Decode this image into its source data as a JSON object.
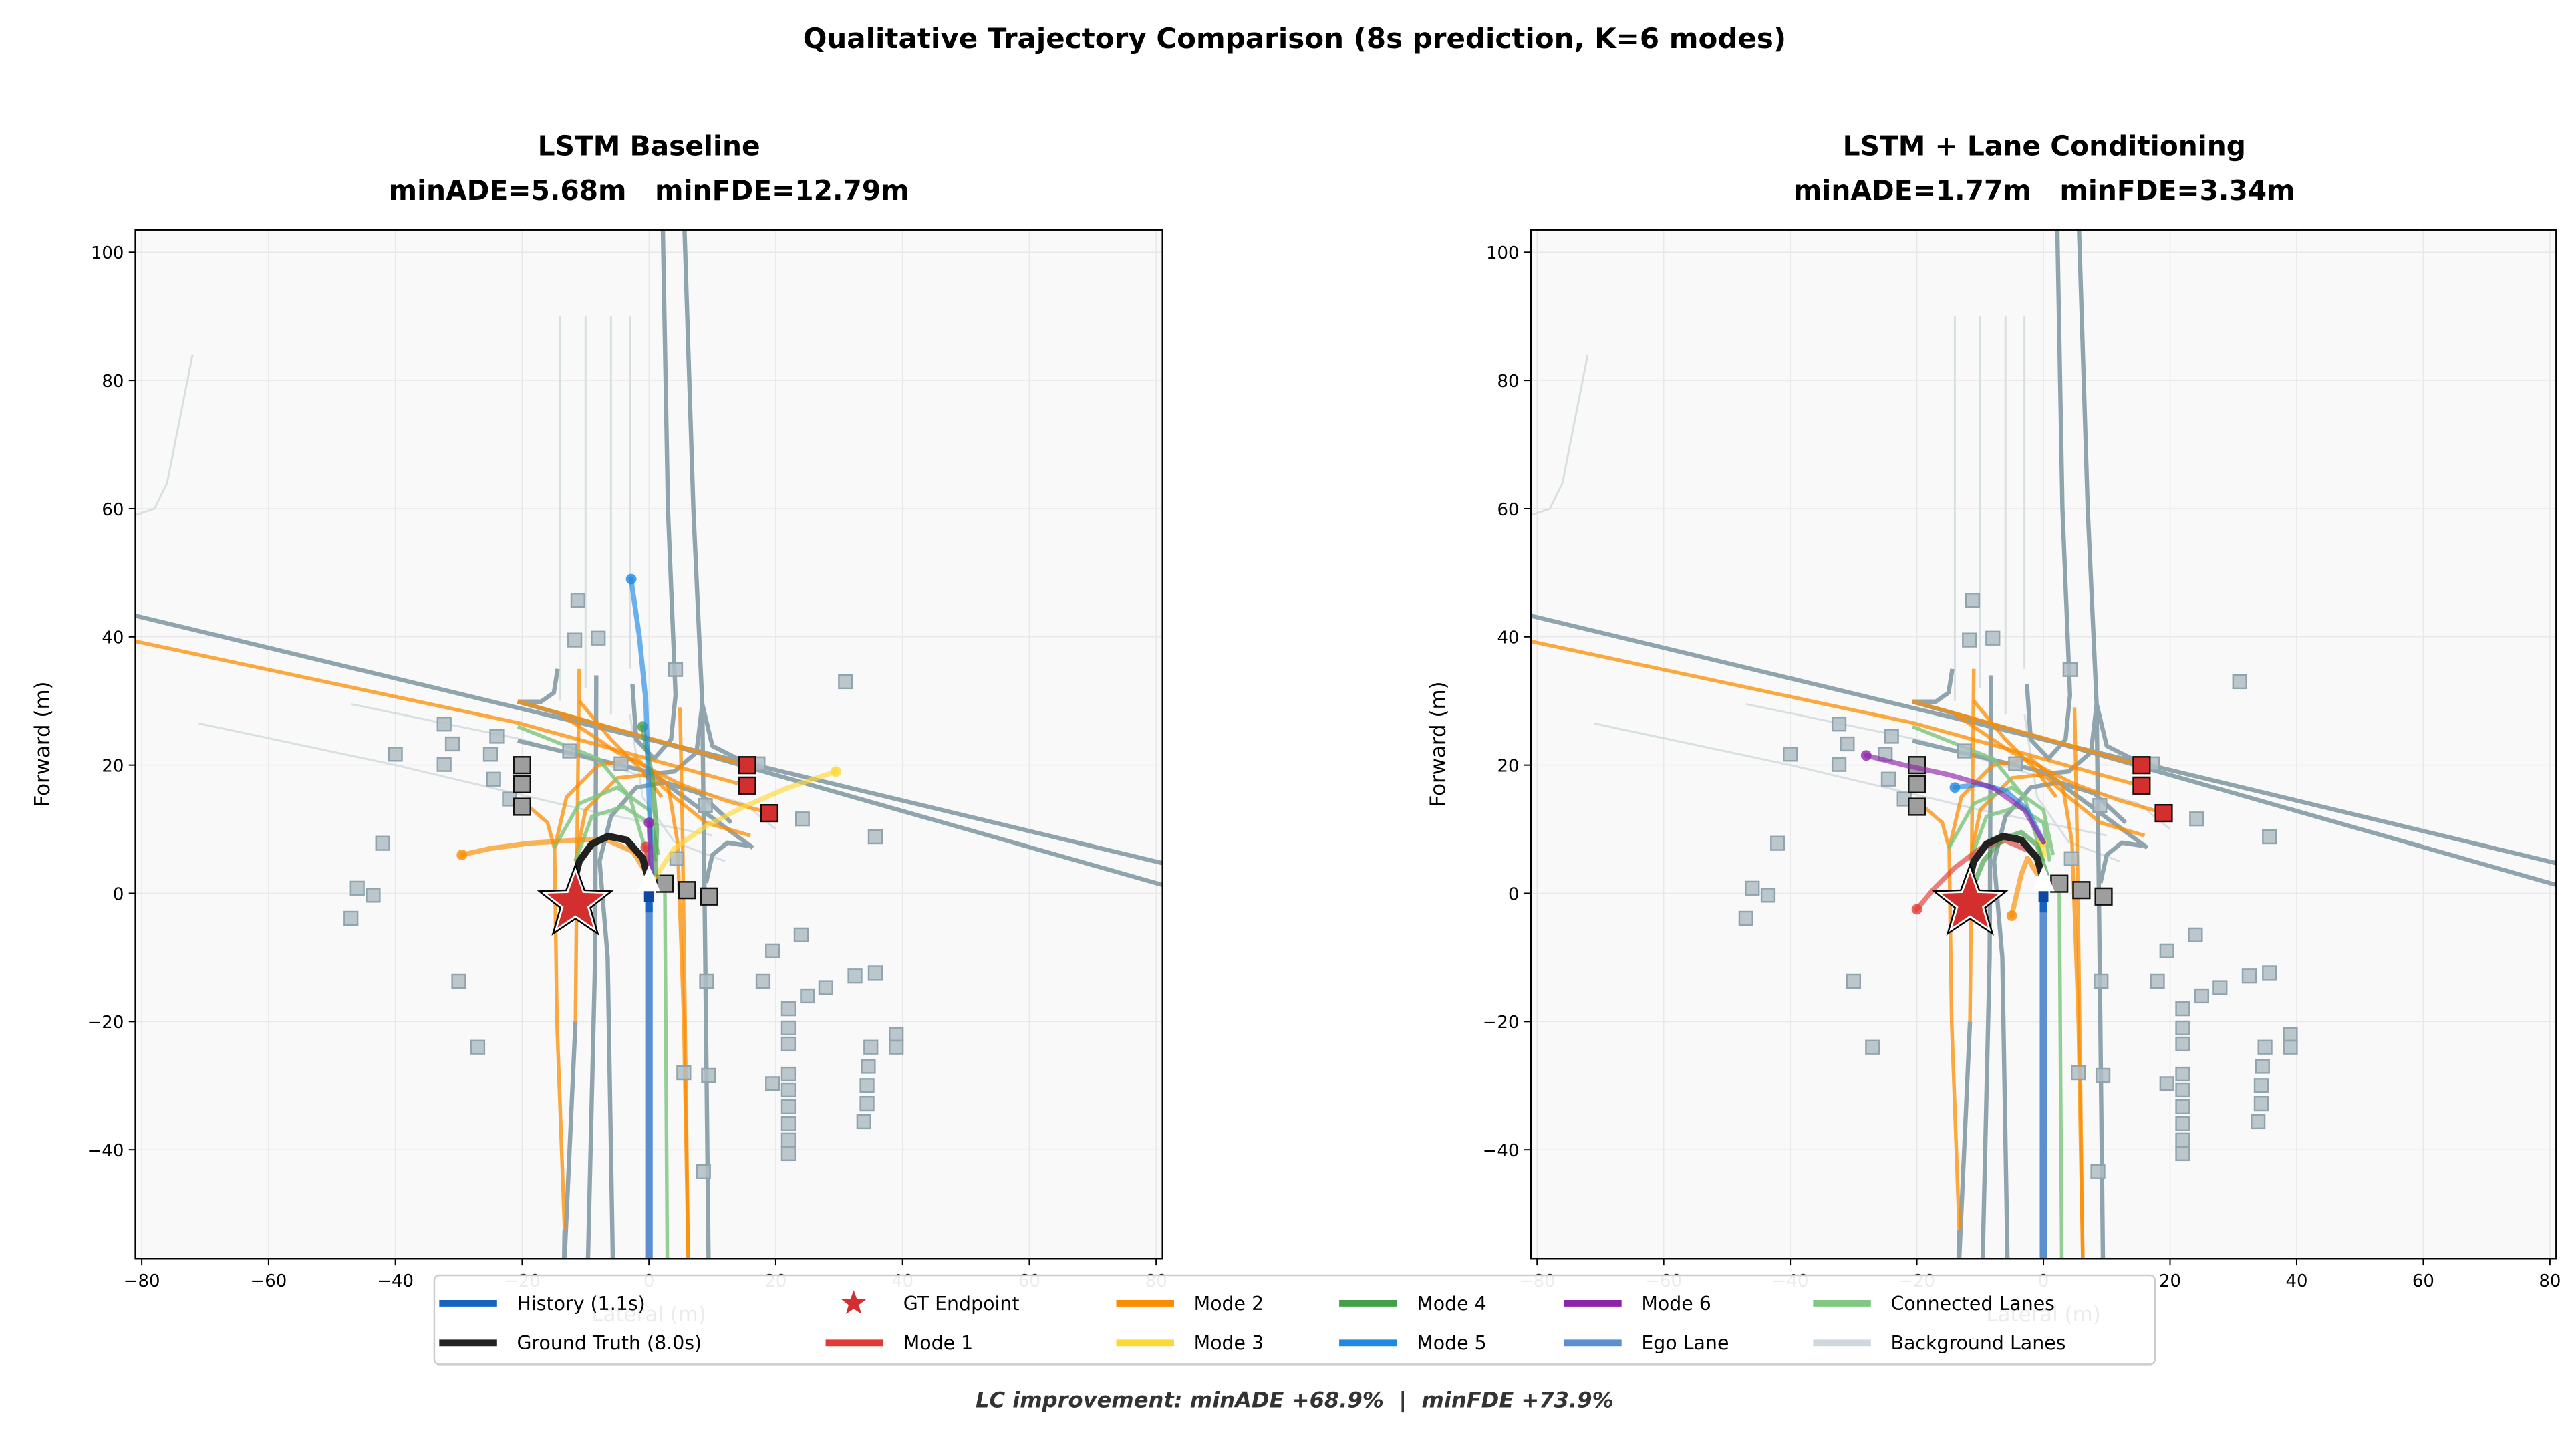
{
  "suptitle": "Qualitative Trajectory Comparison (8s prediction, K=6 modes)",
  "footer": "LC improvement: minADE +68.9%  |  minFDE +73.9%",
  "colors": {
    "history": "#1565c0",
    "ground_truth": "#212121",
    "gt_endpoint": "#d32f2f",
    "mode_1": "#e53935",
    "mode_2": "#fb8c00",
    "mode_3": "#fdd835",
    "mode_4": "#43a047",
    "mode_5": "#1e88e5",
    "mode_6": "#8e24aa",
    "ego_lane": "#5b8fd0",
    "connected_lanes": "#81c784",
    "background_lanes": "#cfd8dc",
    "map_lanes": "#90a4ae",
    "static_objects": "#b0bec5",
    "agents": "#9e9e9e",
    "key_agents": "#d32f2f",
    "axes_bg": "#f9f9f9"
  },
  "legend": {
    "placement": "bottom-center",
    "items": [
      {
        "label": "History (1.1s)",
        "key": "history",
        "kind": "line"
      },
      {
        "label": "Ground Truth (8.0s)",
        "key": "ground_truth",
        "kind": "line"
      },
      {
        "label": "GT Endpoint",
        "key": "gt_endpoint",
        "kind": "star"
      },
      {
        "label": "Mode 1",
        "key": "mode_1",
        "kind": "line"
      },
      {
        "label": "Mode 2",
        "key": "mode_2",
        "kind": "line"
      },
      {
        "label": "Mode 3",
        "key": "mode_3",
        "kind": "line"
      },
      {
        "label": "Mode 4",
        "key": "mode_4",
        "kind": "line"
      },
      {
        "label": "Mode 5",
        "key": "mode_5",
        "kind": "line"
      },
      {
        "label": "Mode 6",
        "key": "mode_6",
        "kind": "line"
      },
      {
        "label": "Ego Lane",
        "key": "ego_lane",
        "kind": "line"
      },
      {
        "label": "Connected Lanes",
        "key": "connected_lanes",
        "kind": "line"
      },
      {
        "label": "Background Lanes",
        "key": "background_lanes",
        "kind": "line"
      }
    ]
  },
  "chart_data": [
    {
      "type": "line",
      "title": "LSTM Baseline",
      "subtitle": "minADE=5.68m   minFDE=12.79m",
      "xlabel": "Lateral (m)",
      "ylabel": "Forward (m)",
      "xlim": [
        -81,
        81
      ],
      "ylim": [
        -57,
        103.5
      ],
      "xticks": [
        -80,
        -60,
        -40,
        -20,
        0,
        20,
        40,
        60,
        80
      ],
      "yticks": [
        -40,
        -20,
        0,
        20,
        40,
        60,
        80,
        100
      ],
      "grid": true,
      "modes": [
        {
          "name": "Mode 1",
          "key": "mode_1",
          "points": [
            [
              0.2,
              3
            ],
            [
              -0.2,
              5
            ],
            [
              -0.5,
              7.2
            ]
          ]
        },
        {
          "name": "Mode 2",
          "key": "mode_2",
          "points": [
            [
              0,
              2.5
            ],
            [
              -2.5,
              6.5
            ],
            [
              -7,
              8.5
            ],
            [
              -13,
              8.2
            ],
            [
              -19,
              7.8
            ],
            [
              -25,
              7
            ],
            [
              -29.5,
              6
            ]
          ]
        },
        {
          "name": "Mode 3",
          "key": "mode_3",
          "points": [
            [
              1,
              2.5
            ],
            [
              4,
              7
            ],
            [
              9,
              10.5
            ],
            [
              15,
              13.5
            ],
            [
              22,
              16.5
            ],
            [
              29.5,
              19
            ]
          ]
        },
        {
          "name": "Mode 4",
          "key": "mode_4",
          "points": [
            [
              1,
              3
            ],
            [
              1.2,
              10
            ],
            [
              0.5,
              18
            ],
            [
              -1,
              26
            ]
          ]
        },
        {
          "name": "Mode 5",
          "key": "mode_5",
          "points": [
            [
              0.5,
              3
            ],
            [
              0,
              15
            ],
            [
              -0.5,
              30
            ],
            [
              -1.5,
              40
            ],
            [
              -2.8,
              49
            ]
          ]
        },
        {
          "name": "Mode 6",
          "key": "mode_6",
          "points": [
            [
              0.3,
              3
            ],
            [
              0.2,
              7
            ],
            [
              0,
              11
            ]
          ]
        }
      ]
    },
    {
      "type": "line",
      "title": "LSTM + Lane Conditioning",
      "subtitle": "minADE=1.77m   minFDE=3.34m",
      "xlabel": "Lateral (m)",
      "ylabel": "Forward (m)",
      "xlim": [
        -81,
        81
      ],
      "ylim": [
        -57,
        103.5
      ],
      "xticks": [
        -80,
        -60,
        -40,
        -20,
        0,
        20,
        40,
        60,
        80
      ],
      "yticks": [
        -40,
        -20,
        0,
        20,
        40,
        60,
        80,
        100
      ],
      "grid": true,
      "modes": [
        {
          "name": "Mode 1",
          "key": "mode_1",
          "points": [
            [
              -2,
              6.5
            ],
            [
              -6,
              8.2
            ],
            [
              -10,
              7
            ],
            [
              -14,
              4
            ],
            [
              -17.5,
              0.5
            ],
            [
              -20,
              -2.5
            ]
          ]
        },
        {
          "name": "Mode 2",
          "key": "mode_2",
          "points": [
            [
              -1,
              3
            ],
            [
              -2.5,
              5.5
            ],
            [
              -3.5,
              3
            ],
            [
              -4.2,
              0
            ],
            [
              -5,
              -3.5
            ]
          ]
        },
        {
          "name": "Mode 3",
          "key": "mode_3",
          "points": [
            [
              0.2,
              6
            ],
            [
              -0.3,
              8
            ]
          ]
        },
        {
          "name": "Mode 4",
          "key": "mode_4",
          "points": [
            [
              0.5,
              3
            ],
            [
              -1,
              7.5
            ],
            [
              -3.5,
              9.5
            ],
            [
              -6.5,
              8.5
            ],
            [
              -9.5,
              5
            ],
            [
              -12,
              -1
            ]
          ]
        },
        {
          "name": "Mode 5",
          "key": "mode_5",
          "points": [
            [
              0,
              8
            ],
            [
              -2.5,
              13
            ],
            [
              -6,
              16
            ],
            [
              -10,
              17
            ],
            [
              -14,
              16.5
            ]
          ]
        },
        {
          "name": "Mode 6",
          "key": "mode_6",
          "points": [
            [
              0,
              8
            ],
            [
              -3,
              13
            ],
            [
              -8,
              16.5
            ],
            [
              -15,
              18.5
            ],
            [
              -22,
              20
            ],
            [
              -28,
              21.5
            ]
          ]
        }
      ]
    }
  ],
  "scene": {
    "history": [
      [
        0,
        -3
      ],
      [
        0,
        0
      ]
    ],
    "ground_truth": [
      [
        0,
        2
      ],
      [
        -1,
        5.5
      ],
      [
        -3.5,
        8.3
      ],
      [
        -6.4,
        8.9
      ],
      [
        -9,
        7.7
      ],
      [
        -11,
        5
      ],
      [
        -11.5,
        3
      ]
    ],
    "gt_endpoint": [
      -11.6,
      -1.5
    ],
    "ego": [
      0,
      1.5
    ],
    "ego_lane": [
      [
        0,
        -57
      ],
      [
        0,
        -2
      ]
    ],
    "background_lanes": [
      [
        [
          -14,
          90
        ],
        [
          -14,
          30
        ]
      ],
      [
        [
          -10,
          90
        ],
        [
          -10,
          32
        ]
      ],
      [
        [
          -6,
          90
        ],
        [
          -6,
          28
        ]
      ],
      [
        [
          -3,
          90
        ],
        [
          -3,
          35
        ]
      ],
      [
        [
          -81,
          59
        ],
        [
          -78,
          60
        ],
        [
          -76,
          64
        ],
        [
          -72,
          84
        ]
      ],
      [
        [
          -71,
          26.5
        ],
        [
          -40,
          20
        ],
        [
          -10,
          13
        ],
        [
          10,
          9
        ]
      ],
      [
        [
          -47,
          29.5
        ],
        [
          -20,
          24
        ],
        [
          0,
          18
        ],
        [
          15,
          14
        ],
        [
          20,
          10
        ]
      ],
      [
        [
          -3,
          28
        ],
        [
          -1,
          15
        ],
        [
          4,
          8
        ],
        [
          12,
          5
        ]
      ]
    ],
    "map_lanes": [
      [
        [
          -81,
          43.3
        ],
        [
          81,
          4.7
        ]
      ],
      [
        [
          -20.7,
          29.9
        ],
        [
          81.4,
          1.2
        ]
      ],
      [
        [
          -20.7,
          23.8
        ],
        [
          0.2,
          18.9
        ],
        [
          16.4,
          7.1
        ]
      ],
      [
        [
          -14.4,
          35
        ],
        [
          -15,
          31.3
        ],
        [
          -17,
          29.9
        ],
        [
          -20.7,
          29.9
        ]
      ],
      [
        [
          2.2,
          103.8
        ],
        [
          3,
          60
        ],
        [
          4.2,
          30.9
        ],
        [
          3.5,
          24
        ],
        [
          0.8,
          21
        ],
        [
          -2,
          24
        ],
        [
          -2.6,
          32.6
        ]
      ],
      [
        [
          5.6,
          103.8
        ],
        [
          7,
          60
        ],
        [
          8.4,
          29.5
        ],
        [
          8.9,
          -12.3
        ],
        [
          9.4,
          -57
        ]
      ],
      [
        [
          8.4,
          29.5
        ],
        [
          7.5,
          22
        ],
        [
          4,
          19
        ],
        [
          -1,
          18.5
        ]
      ],
      [
        [
          8.4,
          29.5
        ],
        [
          10,
          23
        ],
        [
          16,
          20
        ]
      ],
      [
        [
          -8.3,
          34
        ],
        [
          -8.5,
          -10
        ],
        [
          -9.6,
          -57
        ]
      ],
      [
        [
          -5.7,
          -57
        ],
        [
          -6.5,
          -10
        ],
        [
          -7.8,
          5
        ],
        [
          -6,
          12
        ],
        [
          -2,
          16.5
        ],
        [
          2.5,
          17.3
        ],
        [
          8,
          15.6
        ],
        [
          13,
          11
        ]
      ],
      [
        [
          9,
          1.6
        ],
        [
          10,
          6
        ],
        [
          12.4,
          7.9
        ],
        [
          15.7,
          7.4
        ]
      ],
      [
        [
          -11.6,
          -20
        ],
        [
          -13.3,
          -57
        ]
      ],
      [
        [
          -13.3,
          -52.6
        ],
        [
          -13.4,
          -57
        ]
      ]
    ],
    "highlight_lanes": [
      [
        [
          -81,
          39.3
        ],
        [
          -20.7,
          26.6
        ],
        [
          15.2,
          16.8
        ]
      ],
      [
        [
          -20.7,
          29.9
        ],
        [
          15.4,
          20
        ]
      ],
      [
        [
          -14,
          28
        ],
        [
          -5,
          22
        ],
        [
          5,
          17
        ],
        [
          12,
          14.5
        ],
        [
          19,
          12.5
        ]
      ],
      [
        [
          -11,
          35
        ],
        [
          -11.3,
          10
        ],
        [
          -11.6,
          -20
        ]
      ],
      [
        [
          -19.5,
          14
        ],
        [
          -16,
          11
        ],
        [
          -14.9,
          7
        ],
        [
          -14.5,
          -20
        ],
        [
          -13.3,
          -52.6
        ]
      ],
      [
        [
          -14.9,
          7
        ],
        [
          -13,
          15
        ],
        [
          -8,
          20
        ],
        [
          -2,
          21
        ],
        [
          3,
          17
        ],
        [
          4.5,
          8
        ],
        [
          5.5,
          -20
        ],
        [
          6.2,
          -57
        ]
      ],
      [
        [
          -11.6,
          5
        ],
        [
          -10,
          13
        ],
        [
          -5,
          18
        ],
        [
          0,
          18.5
        ],
        [
          4,
          15
        ],
        [
          9,
          11
        ],
        [
          16,
          9
        ]
      ],
      [
        [
          4.9,
          29
        ],
        [
          5.3,
          10
        ],
        [
          6.2,
          -57
        ]
      ],
      [
        [
          -11,
          30
        ],
        [
          -6,
          24
        ],
        [
          -1,
          19
        ],
        [
          2,
          15
        ]
      ]
    ],
    "connected_lanes": [
      [
        [
          2.9,
          -57
        ],
        [
          2.5,
          2
        ]
      ],
      [
        [
          -11.6,
          5
        ],
        [
          -9,
          12
        ],
        [
          -4,
          13.5
        ],
        [
          0,
          11
        ],
        [
          1,
          5
        ]
      ],
      [
        [
          -15,
          7
        ],
        [
          -11,
          14
        ],
        [
          -5,
          16.5
        ],
        [
          0,
          13
        ],
        [
          1.5,
          6
        ]
      ],
      [
        [
          -20.7,
          26
        ],
        [
          -8,
          21
        ],
        [
          -3,
          15
        ],
        [
          0,
          5
        ]
      ]
    ],
    "agents": [
      [
        -20,
        20
      ],
      [
        -20,
        17
      ],
      [
        -20,
        13.5
      ],
      [
        2.5,
        1.5
      ],
      [
        6,
        0.5
      ],
      [
        9.5,
        -0.5
      ]
    ],
    "key_agents": [
      [
        15.5,
        20
      ],
      [
        15.5,
        16.8
      ],
      [
        19,
        12.5
      ]
    ],
    "static_objects": [
      [
        -11.2,
        45.7
      ],
      [
        -11.7,
        39.5
      ],
      [
        -8,
        39.8
      ],
      [
        4.2,
        34.9
      ],
      [
        31,
        33
      ],
      [
        -32.3,
        26.4
      ],
      [
        -31,
        23.3
      ],
      [
        -24,
        24.5
      ],
      [
        -40,
        21.7
      ],
      [
        -32.3,
        20.1
      ],
      [
        -25,
        21.7
      ],
      [
        -24.5,
        17.8
      ],
      [
        -22,
        14.7
      ],
      [
        -12.5,
        22.2
      ],
      [
        -4.4,
        20.2
      ],
      [
        17.2,
        20.2
      ],
      [
        8.9,
        13.7
      ],
      [
        24.2,
        11.6
      ],
      [
        35.7,
        8.8
      ],
      [
        -42,
        7.8
      ],
      [
        -46,
        0.8
      ],
      [
        -43.5,
        -0.3
      ],
      [
        -47,
        -3.9
      ],
      [
        4.4,
        5.4
      ],
      [
        24,
        -6.5
      ],
      [
        19.5,
        -9
      ],
      [
        9.1,
        -13.7
      ],
      [
        18,
        -13.7
      ],
      [
        32.5,
        -12.9
      ],
      [
        35.7,
        -12.4
      ],
      [
        -30,
        -13.7
      ],
      [
        -27,
        -24
      ],
      [
        22,
        -18
      ],
      [
        22,
        -21
      ],
      [
        22,
        -23.5
      ],
      [
        25,
        -16
      ],
      [
        27.9,
        -14.7
      ],
      [
        35,
        -24
      ],
      [
        34.6,
        -27
      ],
      [
        39,
        -22
      ],
      [
        39,
        -24
      ],
      [
        5.5,
        -28
      ],
      [
        9.4,
        -28.4
      ],
      [
        19.5,
        -29.7
      ],
      [
        22,
        -28.2
      ],
      [
        22,
        -30.7
      ],
      [
        22,
        -33.3
      ],
      [
        22,
        -35.9
      ],
      [
        22,
        -38.5
      ],
      [
        22,
        -40.6
      ],
      [
        34.4,
        -30
      ],
      [
        34.4,
        -32.8
      ],
      [
        33.9,
        -35.6
      ],
      [
        8.6,
        -43.4
      ]
    ]
  }
}
